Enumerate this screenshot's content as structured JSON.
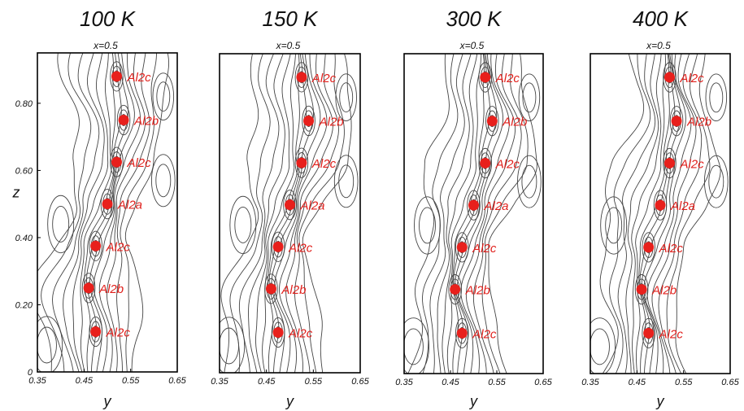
{
  "chart_data": [
    {
      "type": "scatter",
      "title": "100 K",
      "subtitle": "x=0.5",
      "xlabel": "y",
      "ylabel": "z",
      "xlim": [
        0.35,
        0.65
      ],
      "ylim": [
        0,
        0.95
      ],
      "xticks": [
        "0.35",
        "0.45",
        "0.55",
        "0.65"
      ],
      "yticks": [
        "0",
        "0.20",
        "0.40",
        "0.60",
        "0.80"
      ],
      "points": [
        {
          "label": "Al2c",
          "y": 0.52,
          "z": 0.88
        },
        {
          "label": "Al2b",
          "y": 0.535,
          "z": 0.75
        },
        {
          "label": "Al2c",
          "y": 0.52,
          "z": 0.625
        },
        {
          "label": "Al2a",
          "y": 0.5,
          "z": 0.5
        },
        {
          "label": "Al2c",
          "y": 0.475,
          "z": 0.375
        },
        {
          "label": "Al2b",
          "y": 0.46,
          "z": 0.25
        },
        {
          "label": "Al2c",
          "y": 0.475,
          "z": 0.12
        }
      ]
    },
    {
      "type": "scatter",
      "title": "150 K",
      "subtitle": "x=0.5",
      "xlabel": "y",
      "xlim": [
        0.35,
        0.65
      ],
      "ylim": [
        0,
        0.95
      ],
      "xticks": [
        "0.35",
        "0.45",
        "0.55",
        "0.65"
      ],
      "points": [
        {
          "label": "Al2c",
          "y": 0.525,
          "z": 0.88
        },
        {
          "label": "Al2b",
          "y": 0.54,
          "z": 0.75
        },
        {
          "label": "Al2c",
          "y": 0.525,
          "z": 0.625
        },
        {
          "label": "Al2a",
          "y": 0.5,
          "z": 0.5
        },
        {
          "label": "Al2c",
          "y": 0.475,
          "z": 0.375
        },
        {
          "label": "Al2b",
          "y": 0.46,
          "z": 0.25
        },
        {
          "label": "Al2c",
          "y": 0.475,
          "z": 0.12
        }
      ]
    },
    {
      "type": "scatter",
      "title": "300 K",
      "subtitle": "x=0.5",
      "xlabel": "y",
      "xlim": [
        0.35,
        0.65
      ],
      "ylim": [
        0,
        0.95
      ],
      "xticks": [
        "0.35",
        "0.45",
        "0.55",
        "0.65"
      ],
      "points": [
        {
          "label": "Al2c",
          "y": 0.525,
          "z": 0.88
        },
        {
          "label": "Al2b",
          "y": 0.54,
          "z": 0.75
        },
        {
          "label": "Al2c",
          "y": 0.525,
          "z": 0.625
        },
        {
          "label": "Al2a",
          "y": 0.5,
          "z": 0.5
        },
        {
          "label": "Al2c",
          "y": 0.475,
          "z": 0.375
        },
        {
          "label": "Al2b",
          "y": 0.46,
          "z": 0.25
        },
        {
          "label": "Al2c",
          "y": 0.475,
          "z": 0.12
        }
      ]
    },
    {
      "type": "scatter",
      "title": "400 K",
      "subtitle": "x=0.5",
      "xlabel": "y",
      "xlim": [
        0.35,
        0.65
      ],
      "ylim": [
        0,
        0.95
      ],
      "xticks": [
        "0.35",
        "0.45",
        "0.55",
        "0.65"
      ],
      "points": [
        {
          "label": "Al2c",
          "y": 0.52,
          "z": 0.88
        },
        {
          "label": "Al2b",
          "y": 0.535,
          "z": 0.75
        },
        {
          "label": "Al2c",
          "y": 0.52,
          "z": 0.625
        },
        {
          "label": "Al2a",
          "y": 0.5,
          "z": 0.5
        },
        {
          "label": "Al2c",
          "y": 0.475,
          "z": 0.375
        },
        {
          "label": "Al2b",
          "y": 0.46,
          "z": 0.25
        },
        {
          "label": "Al2c",
          "y": 0.475,
          "z": 0.12
        }
      ]
    }
  ],
  "colors": {
    "marker": "#e8201c",
    "site_label": "#e0201c",
    "contour": "#444444",
    "frame": "#000000"
  }
}
